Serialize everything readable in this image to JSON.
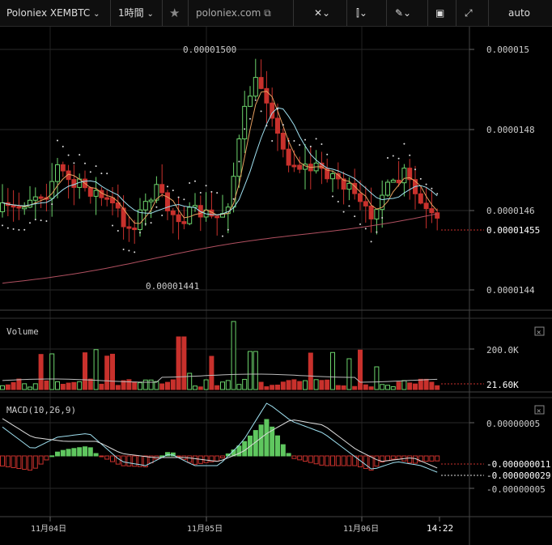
{
  "toolbar": {
    "symbol": "Poloniex XEMBTC",
    "interval": "1時間",
    "star": "★",
    "site": "poloniex.com",
    "scale_mode": "auto",
    "icons": [
      "chevron-down-icon",
      "chevron-down-icon",
      "star-icon",
      "external-link-icon",
      "crosshair-icon",
      "indicators-icon",
      "pencil-icon",
      "screenshot-icon",
      "fullscreen-icon"
    ]
  },
  "chart_data": [
    {
      "type": "candlestick",
      "name": "price",
      "high_label": "0.00001500",
      "low_label": "0.00001441",
      "last_price_label": "0.00001455",
      "yticks": [
        "0.000015",
        "0.0000148",
        "0.0000146",
        "0.0000144"
      ],
      "ytick_values": [
        1.5e-05,
        1.48e-05,
        1.46e-05,
        1.44e-05
      ],
      "colors": {
        "up": "#6cd46c",
        "down": "#c8312c",
        "ma_fast": "#e8a060",
        "ma_slow": "#9fe0f0",
        "ma_long": "#b05060",
        "sar": "#dddddd"
      }
    },
    {
      "type": "bar",
      "name": "volume",
      "title": "Volume",
      "yticks": [
        "200.0K"
      ],
      "last_label": "21.60K"
    },
    {
      "type": "line",
      "name": "macd",
      "title": "MACD(10,26,9)",
      "yticks": [
        "0.00000005",
        "-0.00000005"
      ],
      "labels_right": [
        "-0.000000011",
        "-0.000000029"
      ],
      "colors": {
        "macd": "#9fe0f0",
        "signal": "#dddddd",
        "hist_up": "#5fc75f",
        "hist_down": "#c8312c"
      }
    }
  ],
  "xaxis": {
    "ticks": [
      "11月04日",
      "11月05日",
      "11月06日",
      "14:22"
    ]
  },
  "close_glyph": "✕"
}
